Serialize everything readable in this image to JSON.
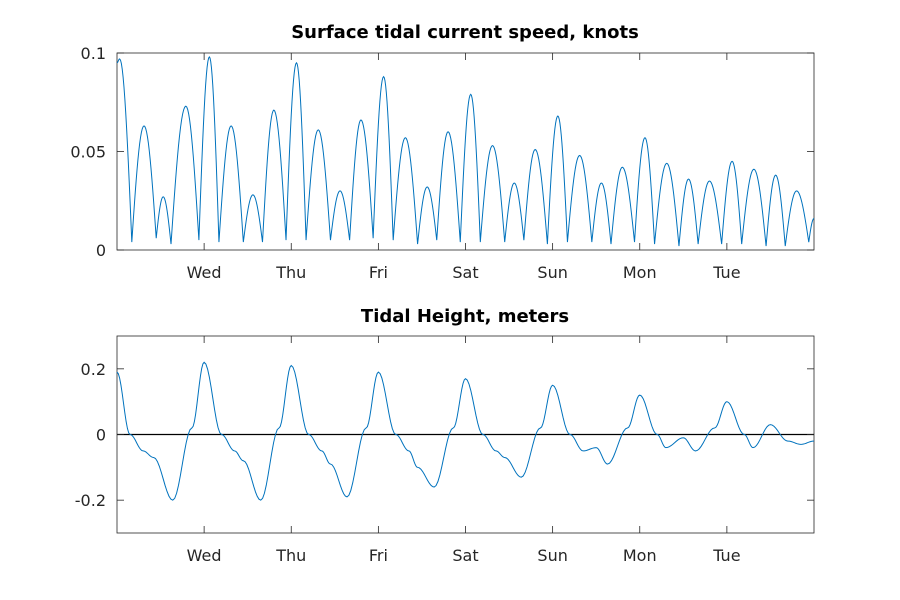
{
  "chart_data": [
    {
      "type": "line",
      "title": "Surface tidal current speed, knots",
      "xlabel": "",
      "ylabel": "",
      "x_tick_labels": [
        "Wed",
        "Thu",
        "Fri",
        "Sat",
        "Sun",
        "Mon",
        "Tue"
      ],
      "y_tick_labels": [
        "0",
        "0.05",
        "0.1"
      ],
      "y_ticks": [
        0,
        0.05,
        0.1
      ],
      "xlim_days": [
        0,
        8
      ],
      "ylim": [
        0,
        0.1
      ],
      "grid": false,
      "legend": "none",
      "line_color": "#0072BD",
      "series": [
        {
          "peaks_day_value": [
            [
              0.03,
              0.097
            ],
            [
              0.31,
              0.063
            ],
            [
              0.53,
              0.027
            ],
            [
              0.79,
              0.073
            ],
            [
              1.06,
              0.098
            ],
            [
              1.31,
              0.063
            ],
            [
              1.56,
              0.028
            ],
            [
              1.8,
              0.071
            ],
            [
              2.06,
              0.095
            ],
            [
              2.31,
              0.061
            ],
            [
              2.56,
              0.03
            ],
            [
              2.8,
              0.066
            ],
            [
              3.06,
              0.088
            ],
            [
              3.31,
              0.057
            ],
            [
              3.56,
              0.032
            ],
            [
              3.8,
              0.06
            ],
            [
              4.06,
              0.079
            ],
            [
              4.31,
              0.053
            ],
            [
              4.56,
              0.034
            ],
            [
              4.8,
              0.051
            ],
            [
              5.06,
              0.068
            ],
            [
              5.31,
              0.048
            ],
            [
              5.56,
              0.034
            ],
            [
              5.8,
              0.042
            ],
            [
              6.06,
              0.057
            ],
            [
              6.31,
              0.044
            ],
            [
              6.56,
              0.036
            ],
            [
              6.8,
              0.035
            ],
            [
              7.06,
              0.045
            ],
            [
              7.31,
              0.041
            ],
            [
              7.56,
              0.038
            ],
            [
              7.8,
              0.03
            ]
          ],
          "minima_day_value": [
            [
              0.17,
              0.004
            ],
            [
              0.45,
              0.006
            ],
            [
              0.62,
              0.003
            ],
            [
              0.94,
              0.005
            ],
            [
              1.17,
              0.004
            ],
            [
              1.45,
              0.004
            ],
            [
              1.67,
              0.004
            ],
            [
              1.94,
              0.005
            ],
            [
              2.17,
              0.005
            ],
            [
              2.45,
              0.005
            ],
            [
              2.67,
              0.005
            ],
            [
              2.94,
              0.006
            ],
            [
              3.17,
              0.005
            ],
            [
              3.45,
              0.003
            ],
            [
              3.67,
              0.005
            ],
            [
              3.94,
              0.004
            ],
            [
              4.17,
              0.004
            ],
            [
              4.45,
              0.004
            ],
            [
              4.67,
              0.005
            ],
            [
              4.94,
              0.003
            ],
            [
              5.17,
              0.004
            ],
            [
              5.45,
              0.004
            ],
            [
              5.67,
              0.003
            ],
            [
              5.94,
              0.004
            ],
            [
              6.17,
              0.003
            ],
            [
              6.45,
              0.002
            ],
            [
              6.67,
              0.003
            ],
            [
              6.94,
              0.003
            ],
            [
              7.17,
              0.003
            ],
            [
              7.45,
              0.002
            ],
            [
              7.67,
              0.002
            ],
            [
              7.94,
              0.004
            ]
          ],
          "end_day_value": [
            [
              0.0,
              0.095
            ],
            [
              8.0,
              0.016
            ]
          ]
        }
      ]
    },
    {
      "type": "line",
      "title": "Tidal Height, meters",
      "xlabel": "",
      "ylabel": "",
      "x_tick_labels": [
        "Wed",
        "Thu",
        "Fri",
        "Sat",
        "Sun",
        "Mon",
        "Tue"
      ],
      "y_tick_labels": [
        "-0.2",
        "0",
        "0.2"
      ],
      "y_ticks": [
        -0.2,
        0,
        0.2
      ],
      "xlim_days": [
        0,
        8
      ],
      "ylim": [
        -0.3,
        0.3
      ],
      "grid": false,
      "legend": "none",
      "zero_line": true,
      "line_color": "#0072BD",
      "series": [
        {
          "points_day_value": [
            [
              0.0,
              0.19
            ],
            [
              0.15,
              0.0
            ],
            [
              0.3,
              -0.05
            ],
            [
              0.42,
              -0.07
            ],
            [
              0.64,
              -0.2
            ],
            [
              0.86,
              0.02
            ],
            [
              1.0,
              0.22
            ],
            [
              1.2,
              0.0
            ],
            [
              1.35,
              -0.05
            ],
            [
              1.45,
              -0.08
            ],
            [
              1.65,
              -0.2
            ],
            [
              1.86,
              0.02
            ],
            [
              2.0,
              0.21
            ],
            [
              2.2,
              0.0
            ],
            [
              2.35,
              -0.05
            ],
            [
              2.45,
              -0.09
            ],
            [
              2.64,
              -0.19
            ],
            [
              2.86,
              0.02
            ],
            [
              3.0,
              0.19
            ],
            [
              3.2,
              0.0
            ],
            [
              3.35,
              -0.05
            ],
            [
              3.45,
              -0.1
            ],
            [
              3.64,
              -0.16
            ],
            [
              3.86,
              0.02
            ],
            [
              4.0,
              0.17
            ],
            [
              4.2,
              0.0
            ],
            [
              4.35,
              -0.05
            ],
            [
              4.45,
              -0.07
            ],
            [
              4.64,
              -0.13
            ],
            [
              4.86,
              0.02
            ],
            [
              5.0,
              0.15
            ],
            [
              5.2,
              0.0
            ],
            [
              5.35,
              -0.05
            ],
            [
              5.5,
              -0.04
            ],
            [
              5.63,
              -0.09
            ],
            [
              5.86,
              0.02
            ],
            [
              6.0,
              0.12
            ],
            [
              6.2,
              0.0
            ],
            [
              6.3,
              -0.04
            ],
            [
              6.5,
              -0.01
            ],
            [
              6.64,
              -0.05
            ],
            [
              6.86,
              0.02
            ],
            [
              7.0,
              0.1
            ],
            [
              7.2,
              0.0
            ],
            [
              7.3,
              -0.04
            ],
            [
              7.5,
              0.03
            ],
            [
              7.7,
              -0.02
            ],
            [
              7.85,
              -0.03
            ],
            [
              8.0,
              -0.02
            ]
          ]
        }
      ]
    }
  ]
}
